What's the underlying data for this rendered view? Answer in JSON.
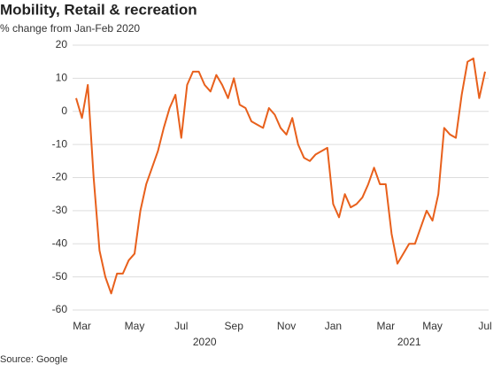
{
  "chart_data": {
    "type": "line",
    "title": "Mobility, Retail & recreation",
    "subtitle": "% change from Jan-Feb 2020",
    "source": "Source: Google",
    "categories": [
      null,
      "Mar",
      null,
      null,
      null,
      null,
      null,
      null,
      null,
      null,
      "May",
      null,
      null,
      null,
      null,
      null,
      null,
      null,
      "Jul",
      null,
      null,
      null,
      null,
      null,
      null,
      null,
      null,
      "Sep",
      null,
      null,
      null,
      null,
      null,
      null,
      null,
      null,
      "Nov",
      null,
      null,
      null,
      null,
      null,
      null,
      null,
      "Jan",
      null,
      null,
      null,
      null,
      null,
      null,
      null,
      null,
      "Mar",
      null,
      null,
      null,
      null,
      null,
      null,
      null,
      "May",
      null,
      null,
      null,
      null,
      null,
      null,
      null,
      null,
      "Jul"
    ],
    "years": [
      "2020",
      "2021"
    ],
    "values": [
      4,
      -2,
      8,
      -20,
      -42,
      -50,
      -55,
      -49,
      -49,
      -45,
      -43,
      -30,
      -22,
      -17,
      -12,
      -5,
      1,
      5,
      -8,
      8,
      12,
      12,
      8,
      6,
      11,
      8,
      4,
      10,
      2,
      1,
      -3,
      -4,
      -5,
      1,
      -1,
      -5,
      -7,
      -2,
      -10,
      -14,
      -15,
      -13,
      -12,
      -11,
      -28,
      -32,
      -25,
      -29,
      -28,
      -26,
      -22,
      -17,
      -22,
      -22,
      -37,
      -46,
      -43,
      -40,
      -40,
      -35,
      -30,
      -33,
      -25,
      -5,
      -7,
      -8,
      5,
      15,
      16,
      4,
      12
    ],
    "color": "#e8601c",
    "ylim": [
      -60,
      20
    ],
    "yticks": [
      -60,
      -50,
      -40,
      -30,
      -20,
      -10,
      0,
      10,
      20
    ],
    "grid": true
  }
}
